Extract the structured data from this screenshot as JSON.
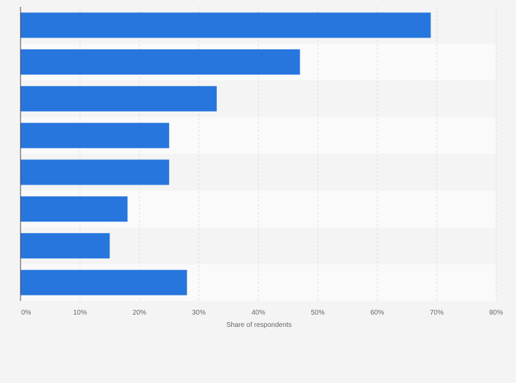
{
  "chart_data": {
    "type": "bar",
    "orientation": "horizontal",
    "categories": [
      "",
      "",
      "",
      "",
      "",
      "",
      "",
      ""
    ],
    "values": [
      69,
      47,
      33,
      25,
      25,
      18,
      15,
      28
    ],
    "unit": "%",
    "xlabel": "Share of respondents",
    "ylabel": "",
    "xlim": [
      0,
      80
    ],
    "xticks": [
      0,
      10,
      20,
      30,
      40,
      50,
      60,
      70,
      80
    ],
    "xtick_labels": [
      "0%",
      "10%",
      "20%",
      "30%",
      "40%",
      "50%",
      "60%",
      "70%",
      "80%"
    ],
    "grid": true,
    "legend": "none"
  },
  "colors": {
    "bar": "#2776de",
    "band_odd": "#f4f4f4",
    "band_even": "#fafafa",
    "grid": "#dcdcdc",
    "axis": "#444444",
    "background": "#f4f4f4"
  }
}
